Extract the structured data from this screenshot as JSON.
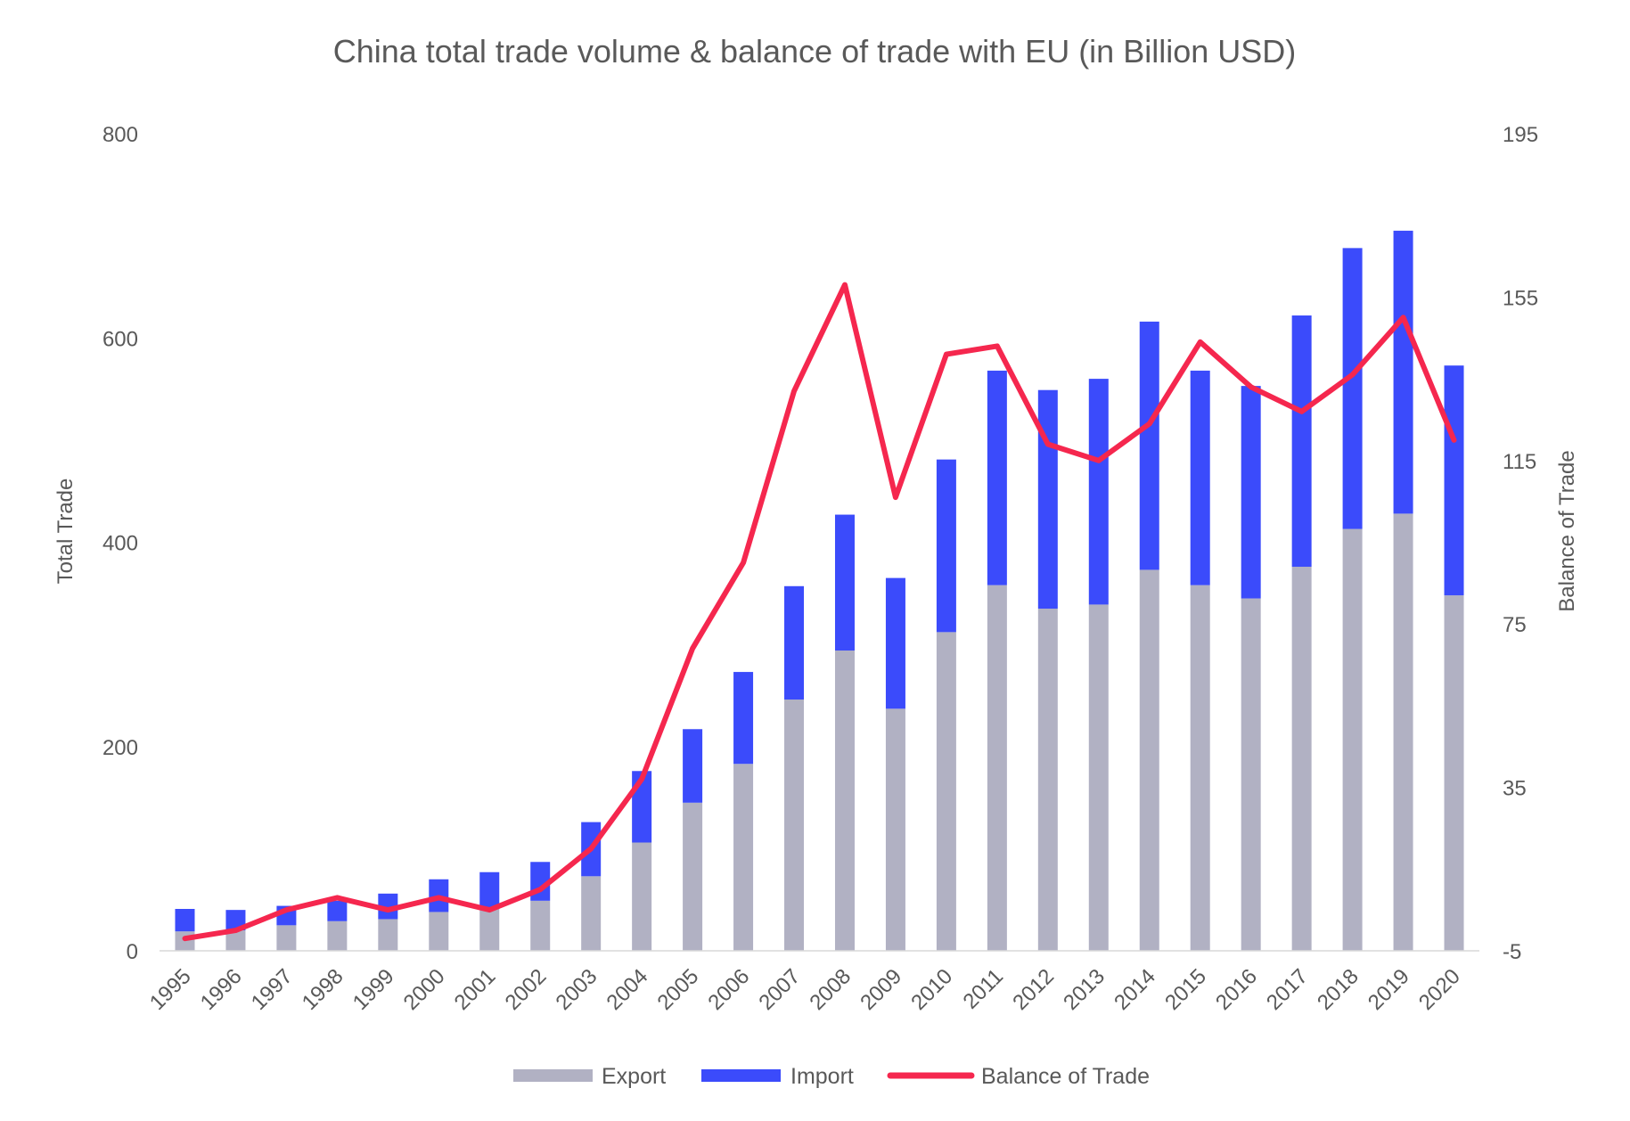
{
  "chart_data": {
    "type": "bar",
    "title": "China total trade volume & balance of trade with EU (in Billion USD)",
    "ylabel": "Total Trade",
    "y2label": "Balance of Trade",
    "ylim": [
      0,
      800
    ],
    "y2lim": [
      -5,
      195
    ],
    "yticks": [
      "0",
      "200",
      "400",
      "600",
      "800"
    ],
    "y2ticks": [
      "-5",
      "35",
      "75",
      "115",
      "155",
      "195"
    ],
    "categories": [
      "1995",
      "1996",
      "1997",
      "1998",
      "1999",
      "2000",
      "2001",
      "2002",
      "2003",
      "2004",
      "2005",
      "2006",
      "2007",
      "2008",
      "2009",
      "2010",
      "2011",
      "2012",
      "2013",
      "2014",
      "2015",
      "2016",
      "2017",
      "2018",
      "2019",
      "2020"
    ],
    "series": [
      {
        "name": "Export",
        "type": "bar",
        "stack": "trade",
        "color": "#b1b1c3",
        "values": [
          19,
          20,
          25,
          29,
          31,
          38,
          41,
          49,
          73,
          106,
          145,
          183,
          246,
          294,
          237,
          312,
          358,
          335,
          339,
          373,
          358,
          345,
          376,
          413,
          428,
          348
        ]
      },
      {
        "name": "Import",
        "type": "bar",
        "stack": "trade",
        "color": "#3b4bfb",
        "values": [
          22,
          20,
          19,
          20,
          25,
          32,
          36,
          38,
          53,
          70,
          72,
          90,
          111,
          133,
          128,
          169,
          210,
          214,
          221,
          243,
          210,
          208,
          246,
          275,
          277,
          225
        ]
      },
      {
        "name": "Balance of Trade",
        "type": "line",
        "axis": "secondary",
        "color": "#f5274e",
        "values": [
          -2,
          0,
          5,
          8,
          5,
          8,
          5,
          10,
          20,
          37,
          69,
          90,
          132,
          158,
          106,
          141,
          143,
          119,
          115,
          124,
          144,
          133,
          127,
          136,
          150,
          120
        ]
      }
    ],
    "legend_position": "bottom",
    "grid": false
  }
}
